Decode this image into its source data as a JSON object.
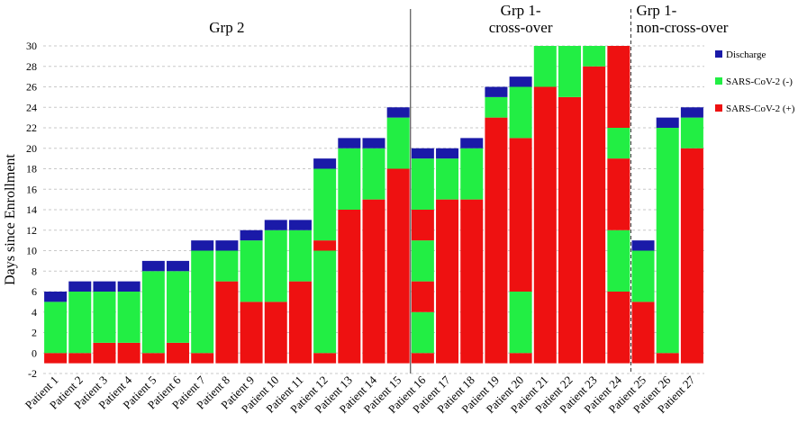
{
  "chart_data": {
    "type": "bar",
    "stacked": true,
    "ylabel": "Days since Enrollment",
    "ylim": [
      -2,
      30
    ],
    "yticks": [
      -2,
      0,
      2,
      4,
      6,
      8,
      10,
      12,
      14,
      16,
      18,
      20,
      22,
      24,
      26,
      28,
      30
    ],
    "grid": true,
    "legend_position": "right",
    "legend": [
      {
        "key": "discharge",
        "label": "Discharge",
        "color": "#1a1aa8"
      },
      {
        "key": "neg",
        "label": "SARS-CoV-2 (-)",
        "color": "#22ee44"
      },
      {
        "key": "pos",
        "label": "SARS-CoV-2 (+)",
        "color": "#ee1111"
      }
    ],
    "groups": [
      {
        "label": "Grp 2",
        "lines": [
          "Grp 2"
        ],
        "start": 0,
        "end": 14
      },
      {
        "label": "Grp 1- cross-over",
        "lines": [
          "Grp 1-",
          "cross-over"
        ],
        "start": 15,
        "end": 23
      },
      {
        "label": "Grp 1- non-cross-over",
        "lines": [
          "Grp 1-",
          "non-cross-over"
        ],
        "start": 24,
        "end": 26
      }
    ],
    "bars": [
      {
        "name": "Patient 1",
        "segments": [
          [
            "pos",
            -1,
            0
          ],
          [
            "neg",
            0,
            5
          ],
          [
            "discharge",
            5,
            6
          ]
        ]
      },
      {
        "name": "Patient 2",
        "segments": [
          [
            "pos",
            -1,
            0
          ],
          [
            "neg",
            0,
            6
          ],
          [
            "discharge",
            6,
            7
          ]
        ]
      },
      {
        "name": "Patient 3",
        "segments": [
          [
            "pos",
            -1,
            1
          ],
          [
            "neg",
            1,
            6
          ],
          [
            "discharge",
            6,
            7
          ]
        ]
      },
      {
        "name": "Patient 4",
        "segments": [
          [
            "pos",
            -1,
            1
          ],
          [
            "neg",
            1,
            6
          ],
          [
            "discharge",
            6,
            7
          ]
        ]
      },
      {
        "name": "Patient 5",
        "segments": [
          [
            "pos",
            -1,
            0
          ],
          [
            "neg",
            0,
            8
          ],
          [
            "discharge",
            8,
            9
          ]
        ]
      },
      {
        "name": "Patient 6",
        "segments": [
          [
            "pos",
            -1,
            1
          ],
          [
            "neg",
            1,
            8
          ],
          [
            "discharge",
            8,
            9
          ]
        ]
      },
      {
        "name": "Patient 7",
        "segments": [
          [
            "pos",
            -1,
            0
          ],
          [
            "neg",
            0,
            10
          ],
          [
            "discharge",
            10,
            11
          ]
        ]
      },
      {
        "name": "Patient 8",
        "segments": [
          [
            "pos",
            -1,
            7
          ],
          [
            "neg",
            7,
            10
          ],
          [
            "discharge",
            10,
            11
          ]
        ]
      },
      {
        "name": "Patient 9",
        "segments": [
          [
            "pos",
            -1,
            5
          ],
          [
            "neg",
            5,
            11
          ],
          [
            "discharge",
            11,
            12
          ]
        ]
      },
      {
        "name": "Patient 10",
        "segments": [
          [
            "pos",
            -1,
            5
          ],
          [
            "neg",
            5,
            12
          ],
          [
            "discharge",
            12,
            13
          ]
        ]
      },
      {
        "name": "Patient 11",
        "segments": [
          [
            "pos",
            -1,
            7
          ],
          [
            "neg",
            7,
            12
          ],
          [
            "discharge",
            12,
            13
          ]
        ]
      },
      {
        "name": "Patient 12",
        "segments": [
          [
            "pos",
            -1,
            0
          ],
          [
            "neg",
            0,
            10
          ],
          [
            "pos",
            10,
            11
          ],
          [
            "neg",
            11,
            18
          ],
          [
            "discharge",
            18,
            19
          ]
        ]
      },
      {
        "name": "Patient 13",
        "segments": [
          [
            "pos",
            -1,
            14
          ],
          [
            "neg",
            14,
            20
          ],
          [
            "discharge",
            20,
            21
          ]
        ]
      },
      {
        "name": "Patient 14",
        "segments": [
          [
            "pos",
            -1,
            15
          ],
          [
            "neg",
            15,
            20
          ],
          [
            "discharge",
            20,
            21
          ]
        ]
      },
      {
        "name": "Patient 15",
        "segments": [
          [
            "pos",
            -1,
            18
          ],
          [
            "neg",
            18,
            23
          ],
          [
            "discharge",
            23,
            24
          ]
        ]
      },
      {
        "name": "Patient 16",
        "segments": [
          [
            "pos",
            -1,
            0
          ],
          [
            "neg",
            0,
            4
          ],
          [
            "pos",
            4,
            7
          ],
          [
            "neg",
            7,
            11
          ],
          [
            "pos",
            11,
            14
          ],
          [
            "neg",
            14,
            19
          ],
          [
            "discharge",
            19,
            20
          ]
        ]
      },
      {
        "name": "Patient 17",
        "segments": [
          [
            "pos",
            -1,
            15
          ],
          [
            "neg",
            15,
            19
          ],
          [
            "discharge",
            19,
            20
          ]
        ]
      },
      {
        "name": "Patient 18",
        "segments": [
          [
            "pos",
            -1,
            15
          ],
          [
            "neg",
            15,
            20
          ],
          [
            "discharge",
            20,
            21
          ]
        ]
      },
      {
        "name": "Patient 19",
        "segments": [
          [
            "pos",
            -1,
            23
          ],
          [
            "neg",
            23,
            25
          ],
          [
            "discharge",
            25,
            26
          ]
        ]
      },
      {
        "name": "Patient 20",
        "segments": [
          [
            "pos",
            -1,
            0
          ],
          [
            "neg",
            0,
            6
          ],
          [
            "pos",
            6,
            21
          ],
          [
            "neg",
            21,
            26
          ],
          [
            "discharge",
            26,
            27
          ]
        ]
      },
      {
        "name": "Patient 21",
        "segments": [
          [
            "pos",
            -1,
            26
          ],
          [
            "neg",
            26,
            30
          ]
        ]
      },
      {
        "name": "Patient 22",
        "segments": [
          [
            "pos",
            -1,
            25
          ],
          [
            "neg",
            25,
            30
          ]
        ]
      },
      {
        "name": "Patient 23",
        "segments": [
          [
            "pos",
            -1,
            28
          ],
          [
            "neg",
            28,
            30
          ]
        ]
      },
      {
        "name": "Patient 24",
        "segments": [
          [
            "pos",
            -1,
            6
          ],
          [
            "neg",
            6,
            12
          ],
          [
            "pos",
            12,
            19
          ],
          [
            "neg",
            19,
            22
          ],
          [
            "pos",
            22,
            30
          ]
        ]
      },
      {
        "name": "Patient 25",
        "segments": [
          [
            "pos",
            -1,
            5
          ],
          [
            "neg",
            5,
            10
          ],
          [
            "discharge",
            10,
            11
          ]
        ]
      },
      {
        "name": "Patient 26",
        "segments": [
          [
            "pos",
            -1,
            0
          ],
          [
            "neg",
            0,
            22
          ],
          [
            "discharge",
            22,
            23
          ]
        ]
      },
      {
        "name": "Patient 27",
        "segments": [
          [
            "pos",
            -1,
            20
          ],
          [
            "neg",
            20,
            23
          ],
          [
            "discharge",
            23,
            24
          ]
        ]
      }
    ]
  }
}
